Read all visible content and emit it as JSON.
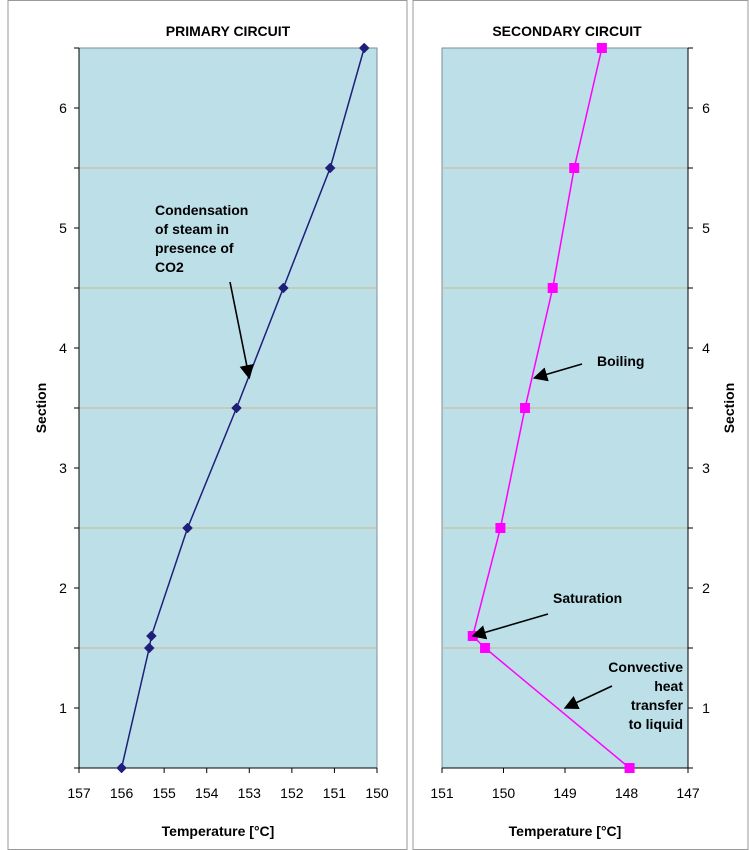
{
  "chart_data": [
    {
      "type": "line",
      "title": "PRIMARY CIRCUIT",
      "xlabel": "Temperature [°C]",
      "ylabel": "Section",
      "x_reversed": true,
      "xlim": [
        157,
        150
      ],
      "ylim": [
        0.5,
        6.5
      ],
      "x_ticks": [
        157,
        156,
        155,
        154,
        153,
        152,
        151,
        150
      ],
      "y_ticks": [
        1,
        2,
        3,
        4,
        5,
        6
      ],
      "y_gridlines": [
        1.5,
        2.5,
        3.5,
        4.5,
        5.5
      ],
      "y_axis_side": "left",
      "series": [
        {
          "marker": "diamond",
          "color": "#1f1f7a",
          "points": [
            {
              "x": 156.0,
              "y": 0.5
            },
            {
              "x": 155.35,
              "y": 1.5
            },
            {
              "x": 155.3,
              "y": 1.6
            },
            {
              "x": 154.45,
              "y": 2.5
            },
            {
              "x": 153.3,
              "y": 3.5
            },
            {
              "x": 152.2,
              "y": 4.5
            },
            {
              "x": 151.1,
              "y": 5.5
            },
            {
              "x": 150.3,
              "y": 6.5
            }
          ]
        }
      ],
      "annotations": [
        {
          "lines": [
            "Condensation",
            "of steam in",
            "presence of",
            "CO2"
          ],
          "arrow_to": {
            "x": 153.0,
            "y": 3.75
          }
        }
      ]
    },
    {
      "type": "line",
      "title": "SECONDARY CIRCUIT",
      "xlabel": "Temperature [°C]",
      "ylabel": "Section",
      "x_reversed": true,
      "xlim": [
        151,
        147
      ],
      "ylim": [
        0.5,
        6.5
      ],
      "x_ticks": [
        151,
        150,
        149,
        148,
        147
      ],
      "y_ticks": [
        1,
        2,
        3,
        4,
        5,
        6
      ],
      "y_gridlines": [
        1.5,
        2.5,
        3.5,
        4.5,
        5.5
      ],
      "y_axis_side": "right",
      "series": [
        {
          "marker": "square",
          "color": "#ff00ff",
          "points": [
            {
              "x": 147.95,
              "y": 0.5
            },
            {
              "x": 150.3,
              "y": 1.5
            },
            {
              "x": 150.5,
              "y": 1.6
            },
            {
              "x": 150.05,
              "y": 2.5
            },
            {
              "x": 149.65,
              "y": 3.5
            },
            {
              "x": 149.2,
              "y": 4.5
            },
            {
              "x": 148.85,
              "y": 5.5
            },
            {
              "x": 148.4,
              "y": 6.5
            }
          ]
        }
      ],
      "annotations": [
        {
          "lines": [
            "Boiling"
          ],
          "arrow_to": {
            "x": 149.5,
            "y": 3.75
          }
        },
        {
          "lines": [
            "Saturation"
          ],
          "arrow_to": {
            "x": 150.5,
            "y": 1.6
          }
        },
        {
          "lines": [
            "Convective",
            "heat",
            "transfer",
            "to liquid"
          ],
          "arrow_to": {
            "x": 149.0,
            "y": 1.0
          }
        }
      ]
    }
  ]
}
